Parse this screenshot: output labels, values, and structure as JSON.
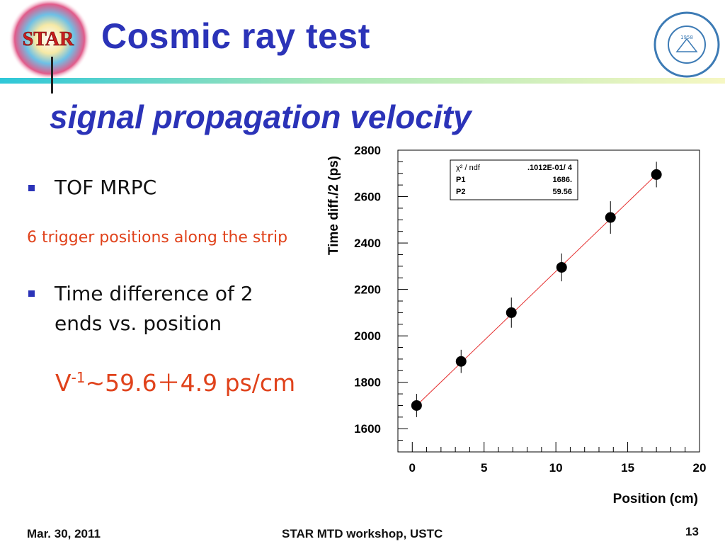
{
  "slide": {
    "title": "Cosmic ray test",
    "subtitle": "signal propagation velocity",
    "logo_text": "STAR",
    "seal_year": "1958",
    "bullets": [
      "TOF MRPC",
      "Time difference of 2 ends vs. position"
    ],
    "note": "6 trigger positions along the strip",
    "formula_main": "V",
    "formula_sup": "-1",
    "formula_rest": "~59.6＋4.9 ps/cm",
    "colors": {
      "title": "#2b33b8",
      "accent": "#e0421b"
    }
  },
  "footer": {
    "date": "Mar. 30, 2011",
    "event": "STAR MTD workshop, USTC",
    "page": "13"
  },
  "chart_data": {
    "type": "scatter",
    "xlabel": "Position (cm)",
    "ylabel": "Time diff./2 (ps)",
    "xlim": [
      -1,
      20
    ],
    "ylim": [
      1500,
      2800
    ],
    "xticks": [
      0,
      5,
      10,
      15,
      20
    ],
    "yticks": [
      1600,
      1800,
      2000,
      2200,
      2400,
      2600,
      2800
    ],
    "points": [
      {
        "x": 0.3,
        "y": 1700,
        "err": 50
      },
      {
        "x": 3.4,
        "y": 1890,
        "err": 50
      },
      {
        "x": 6.9,
        "y": 2100,
        "err": 65
      },
      {
        "x": 10.4,
        "y": 2295,
        "err": 60
      },
      {
        "x": 13.8,
        "y": 2510,
        "err": 70
      },
      {
        "x": 17.0,
        "y": 2695,
        "err": 55
      }
    ],
    "fit": {
      "x_start": 0.3,
      "y_start": 1700,
      "x_end": 17.0,
      "y_end": 2695
    },
    "stats_box": [
      {
        "label": "χ² / ndf",
        "value": ".1012E-01/    4"
      },
      {
        "label": "P1",
        "value": "1686."
      },
      {
        "label": "P2",
        "value": "59.56"
      }
    ],
    "colors": {
      "marker": "#000000",
      "fit": "#e53030"
    }
  }
}
